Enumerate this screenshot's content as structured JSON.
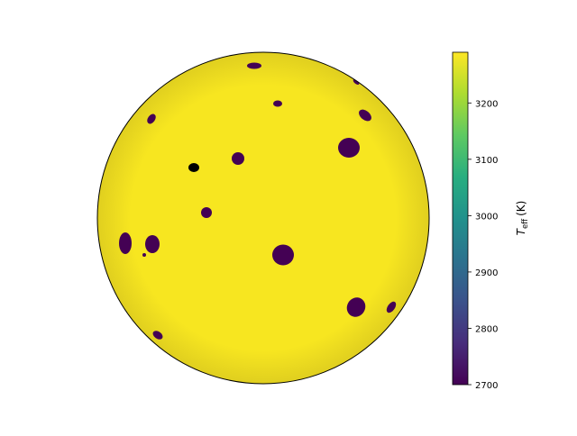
{
  "chart_data": {
    "type": "heatmap",
    "title": "",
    "colorbar": {
      "label_main": "T",
      "label_sub": "eff",
      "label_unit": "(K)",
      "range": [
        2700,
        3290
      ],
      "ticks": [
        2700,
        2800,
        2900,
        3000,
        3100,
        3200
      ],
      "colormap": "viridis"
    },
    "photosphere_temperature_K": 3290,
    "spot_temperature_K": 2700,
    "spot_count": 21,
    "colors": {
      "photosphere_center": "#f7e620",
      "photosphere_limb": "#e0cf1f",
      "spot": "#440154",
      "spot_nearest_edge": "#000000",
      "outline": "#000000"
    }
  }
}
